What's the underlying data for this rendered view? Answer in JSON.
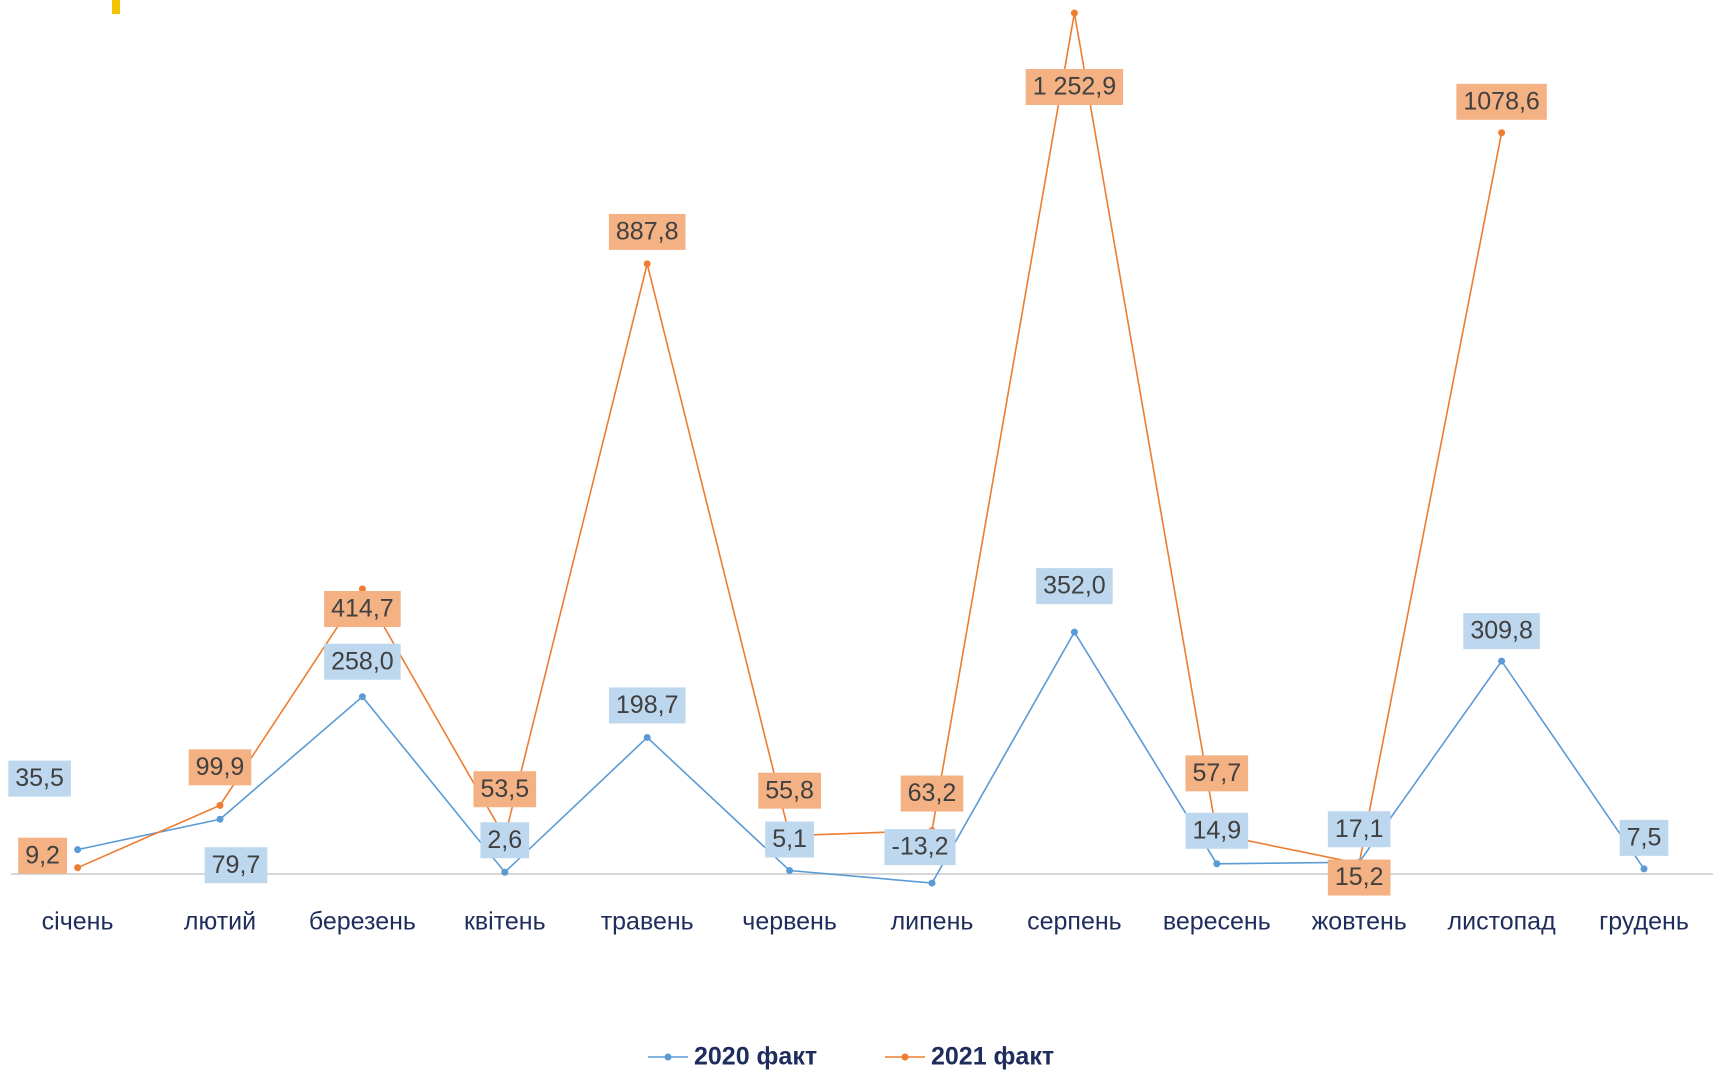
{
  "chart_data": {
    "type": "line",
    "categories": [
      "січень",
      "лютий",
      "березень",
      "квітень",
      "травень",
      "червень",
      "липень",
      "серпень",
      "вересень",
      "жовтень",
      "листопад",
      "грудень"
    ],
    "series": [
      {
        "name": "2020 факт",
        "color": "#5b9bd5",
        "label_color": "#bdd7ee",
        "values": [
          35.5,
          79.7,
          258.0,
          2.6,
          198.7,
          5.1,
          -13.2,
          352.0,
          14.9,
          17.1,
          309.8,
          7.5
        ],
        "value_labels": [
          "35,5",
          "79,7",
          "258,0",
          "2,6",
          "198,7",
          "5,1",
          "-13,2",
          "352,0",
          "14,9",
          "17,1",
          "309,8",
          "7,5"
        ]
      },
      {
        "name": "2021 факт",
        "color": "#ed7d31",
        "label_color": "#f4b183",
        "values": [
          9.2,
          99.9,
          414.7,
          53.5,
          887.8,
          55.8,
          63.2,
          1252.9,
          57.7,
          15.2,
          1078.6,
          null
        ],
        "value_labels": [
          "9,2",
          "99,9",
          "414,7",
          "53,5",
          "887,8",
          "55,8",
          "63,2",
          "1 252,9",
          "57,7",
          "15,2",
          "1078,6",
          null
        ]
      }
    ],
    "legend": "bottom"
  }
}
